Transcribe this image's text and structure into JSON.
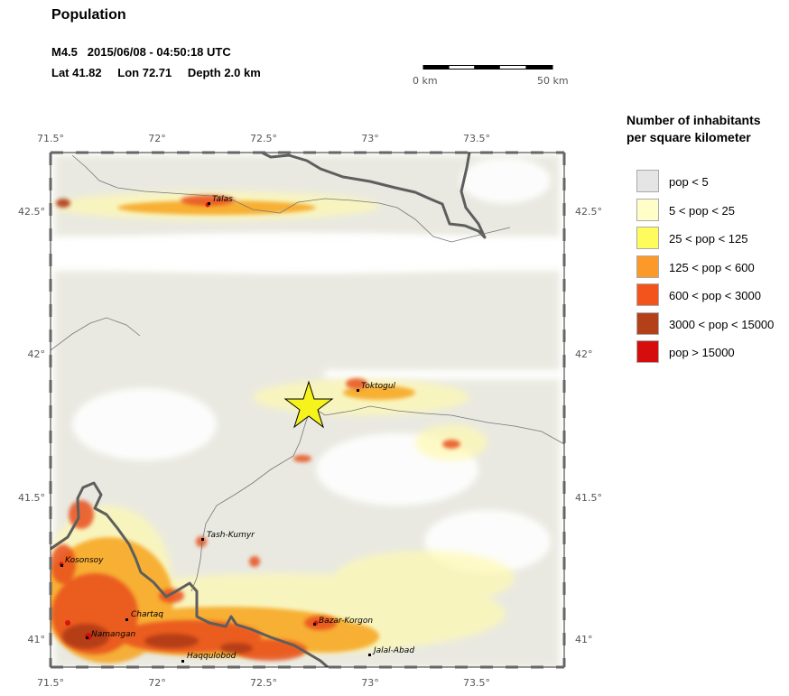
{
  "header": {
    "title": "Population",
    "magnitude": "M4.5",
    "datetime": "2015/06/08 - 04:50:18 UTC",
    "lat": "Lat 41.82",
    "lon": "Lon 72.71",
    "depth": "Depth  2.0 km"
  },
  "scale": {
    "start_label": "0 km",
    "end_label": "50 km"
  },
  "axes": {
    "lon_ticks": [
      "71.5°",
      "72°",
      "72.5°",
      "73°",
      "73.5°"
    ],
    "lat_ticks": [
      "42.5°",
      "42°",
      "41.5°",
      "41°"
    ]
  },
  "legend": {
    "title_line1": "Number of inhabitants",
    "title_line2": "per square kilometer",
    "items": [
      {
        "label": "pop < 5",
        "color": "#e5e5e5"
      },
      {
        "label": "5 < pop < 25",
        "color": "#fffdc8"
      },
      {
        "label": "25 < pop < 125",
        "color": "#fdfc5c"
      },
      {
        "label": "125 < pop < 600",
        "color": "#fb9a29"
      },
      {
        "label": "600 < pop < 3000",
        "color": "#f2541b"
      },
      {
        "label": "3000 < pop < 15000",
        "color": "#b4401a"
      },
      {
        "label": "pop > 15000",
        "color": "#d50d0d"
      }
    ]
  },
  "cities": {
    "talas": "Talas",
    "toktogul": "Toktogul",
    "tash_kumyr": "Tash-Kumyr",
    "kosonsoy": "Kosonsoy",
    "chartak": "Chartaq",
    "namangan": "Namangan",
    "bazar_korgon": "Bazar-Korgon",
    "haqqulobod": "Haqqulobod",
    "jalal_abad": "Jalal-Abad"
  },
  "epicenter": {
    "lat": 41.82,
    "lon": 72.71,
    "color": "#f5f21c"
  }
}
